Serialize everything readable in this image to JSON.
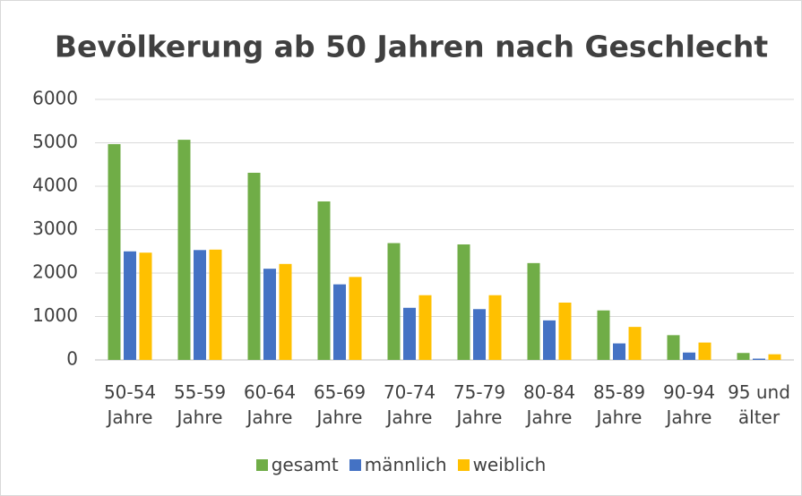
{
  "chart_data": {
    "type": "bar",
    "title": "Bevölkerung ab 50 Jahren nach Geschlecht",
    "categories": [
      "50-54 Jahre",
      "55-59 Jahre",
      "60-64 Jahre",
      "65-69 Jahre",
      "70-74 Jahre",
      "75-79 Jahre",
      "80-84 Jahre",
      "85-89 Jahre",
      "90-94 Jahre",
      "95 und älter"
    ],
    "series": [
      {
        "name": "gesamt",
        "color": "#70ad47",
        "values": [
          4970,
          5070,
          4310,
          3650,
          2690,
          2660,
          2230,
          1140,
          570,
          160
        ]
      },
      {
        "name": "männlich",
        "color": "#4472c4",
        "values": [
          2500,
          2530,
          2100,
          1740,
          1200,
          1170,
          910,
          380,
          170,
          30
        ]
      },
      {
        "name": "weiblich",
        "color": "#ffc000",
        "values": [
          2470,
          2540,
          2210,
          1910,
          1490,
          1490,
          1320,
          760,
          400,
          130
        ]
      }
    ],
    "ylim": [
      0,
      6000
    ],
    "yticks": [
      0,
      1000,
      2000,
      3000,
      4000,
      5000,
      6000
    ],
    "grid": true,
    "legend": "bottom"
  }
}
